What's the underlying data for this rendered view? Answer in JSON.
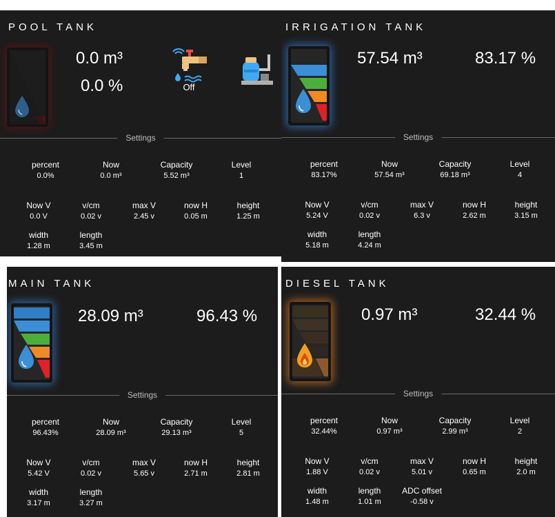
{
  "pool": {
    "title": "POOL TANK",
    "volume": "0.0 m³",
    "percent": "0.0 %",
    "tap_state": "Off",
    "settings_label": "Settings",
    "rows": [
      [
        {
          "label": "percent",
          "value": "0.0%"
        },
        {
          "label": "Now",
          "value": "0.0 m³"
        },
        {
          "label": "Capacity",
          "value": "5.52 m³"
        },
        {
          "label": "Level",
          "value": "1"
        }
      ],
      [
        {
          "label": "Now V",
          "value": "0.0 V"
        },
        {
          "label": "v/cm",
          "value": "0.02 v"
        },
        {
          "label": "max V",
          "value": "2.45 v"
        },
        {
          "label": "now H",
          "value": "0.05 m"
        },
        {
          "label": "height",
          "value": "1.25 m"
        }
      ],
      [
        {
          "label": "width",
          "value": "1.28 m"
        },
        {
          "label": "length",
          "value": "3.45 m"
        }
      ]
    ]
  },
  "irrigation": {
    "title": "IRRIGATION TANK",
    "volume": "57.54 m³",
    "percent": "83.17 %",
    "settings_label": "Settings",
    "rows": [
      [
        {
          "label": "percent",
          "value": "83.17%"
        },
        {
          "label": "Now",
          "value": "57.54 m³"
        },
        {
          "label": "Capacity",
          "value": "69.18 m³"
        },
        {
          "label": "Level",
          "value": "4"
        }
      ],
      [
        {
          "label": "Now V",
          "value": "5.24 V"
        },
        {
          "label": "v/cm",
          "value": "0.02 v"
        },
        {
          "label": "max V",
          "value": "6.3 v"
        },
        {
          "label": "now H",
          "value": "2.62 m"
        },
        {
          "label": "height",
          "value": "3.15 m"
        }
      ],
      [
        {
          "label": "width",
          "value": "5.18 m"
        },
        {
          "label": "length",
          "value": "4.24 m"
        }
      ]
    ]
  },
  "main": {
    "title": "MAIN TANK",
    "volume": "28.09 m³",
    "percent": "96.43 %",
    "settings_label": "Settings",
    "rows": [
      [
        {
          "label": "percent",
          "value": "96.43%"
        },
        {
          "label": "Now",
          "value": "28.09 m³"
        },
        {
          "label": "Capacity",
          "value": "29.13 m³"
        },
        {
          "label": "Level",
          "value": "5"
        }
      ],
      [
        {
          "label": "Now V",
          "value": "5.42 V"
        },
        {
          "label": "v/cm",
          "value": "0.02 v"
        },
        {
          "label": "max V",
          "value": "5.65 v"
        },
        {
          "label": "now H",
          "value": "2.71 m"
        },
        {
          "label": "height",
          "value": "2.81 m"
        }
      ],
      [
        {
          "label": "width",
          "value": "3.17 m"
        },
        {
          "label": "length",
          "value": "3.27 m"
        }
      ]
    ]
  },
  "diesel": {
    "title": "DIESEL TANK",
    "volume": "0.97 m³",
    "percent": "32.44 %",
    "settings_label": "Settings",
    "rows": [
      [
        {
          "label": "percent",
          "value": "32.44%"
        },
        {
          "label": "Now",
          "value": "0.97 m³"
        },
        {
          "label": "Capacity",
          "value": "2.99 m³"
        },
        {
          "label": "Level",
          "value": "2"
        }
      ],
      [
        {
          "label": "Now V",
          "value": "1.88 V"
        },
        {
          "label": "v/cm",
          "value": "0.02 v"
        },
        {
          "label": "max V",
          "value": "5.01 v"
        },
        {
          "label": "now H",
          "value": "0.65 m"
        },
        {
          "label": "height",
          "value": "2.0 m"
        }
      ],
      [
        {
          "label": "width",
          "value": "1.48 m"
        },
        {
          "label": "length",
          "value": "1.01 m"
        },
        {
          "label": "ADC offset",
          "value": "-0.58 v"
        }
      ]
    ]
  },
  "colors": {
    "card_bg": "#1c1c1c",
    "level_blue": "#3a8fd8",
    "level_cyan": "#2f7ec6",
    "level_green": "#4caf3c",
    "level_orange": "#f08a24",
    "level_red": "#e0202a",
    "diesel_tone": "#8a5a2e"
  },
  "icons": [
    "water-drop-icon",
    "fuel-drop-icon",
    "smart-tap-icon",
    "water-pump-icon"
  ]
}
